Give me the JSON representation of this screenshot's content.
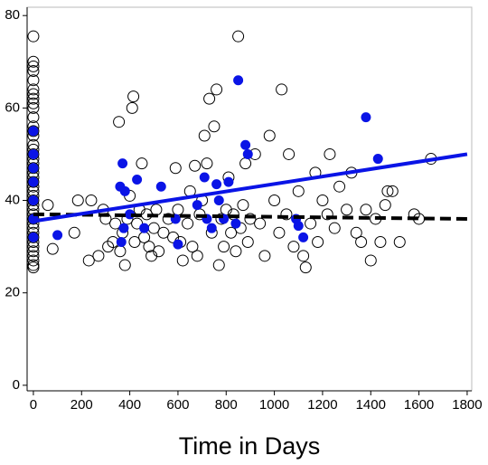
{
  "chart_data": {
    "type": "scatter",
    "xlabel": "Time in Days",
    "xlim": [
      -26,
      1819
    ],
    "ylim": [
      -1.2,
      81.8
    ],
    "xticks": [
      0,
      200,
      400,
      600,
      800,
      1000,
      1200,
      1400,
      1600,
      1800
    ],
    "yticks": [
      0,
      20,
      40,
      60,
      80
    ],
    "series": [
      {
        "color": "#000000",
        "marker": "open",
        "x": [
          0,
          0,
          0,
          0,
          0,
          0,
          0,
          0,
          0,
          0,
          0,
          0,
          0,
          0,
          0,
          0,
          0,
          0,
          0,
          0,
          0,
          0,
          0,
          0,
          0,
          0,
          0,
          0,
          0,
          0,
          0,
          0,
          0,
          0,
          0,
          0,
          0,
          0,
          0,
          0,
          0,
          0,
          60,
          80,
          170,
          185,
          230,
          240,
          270,
          290,
          300,
          310,
          330,
          340,
          355,
          360,
          370,
          380,
          390,
          400,
          410,
          415,
          420,
          430,
          440,
          450,
          460,
          470,
          480,
          490,
          500,
          510,
          520,
          540,
          560,
          580,
          590,
          600,
          610,
          620,
          640,
          650,
          660,
          670,
          680,
          690,
          700,
          710,
          720,
          730,
          740,
          750,
          760,
          770,
          780,
          790,
          800,
          810,
          820,
          830,
          840,
          850,
          860,
          870,
          880,
          890,
          900,
          920,
          940,
          960,
          980,
          1000,
          1020,
          1030,
          1050,
          1060,
          1080,
          1100,
          1120,
          1130,
          1150,
          1170,
          1180,
          1200,
          1220,
          1230,
          1250,
          1270,
          1300,
          1320,
          1340,
          1360,
          1380,
          1400,
          1420,
          1440,
          1460,
          1470,
          1490,
          1520,
          1580,
          1600,
          1650
        ],
        "values": [
          75.5,
          70,
          69,
          68,
          66,
          64,
          63,
          62,
          61,
          60,
          58,
          56,
          55,
          54,
          52,
          51,
          50,
          49,
          48,
          47,
          46,
          45,
          44,
          43,
          42,
          41,
          40,
          39,
          38,
          37,
          36,
          35,
          34,
          33,
          32,
          31,
          30,
          29,
          28,
          27,
          26,
          25.5,
          39,
          29.5,
          33,
          40,
          27,
          40,
          28,
          38,
          36,
          30,
          31,
          35,
          57,
          29,
          33,
          26,
          36,
          41,
          60,
          62.5,
          31,
          35,
          38,
          48,
          32,
          37,
          30,
          28,
          34,
          38,
          29,
          33,
          36,
          32,
          47,
          38,
          31,
          27,
          35,
          42,
          30,
          47.5,
          28,
          37,
          40,
          54,
          48,
          62,
          33,
          56,
          64,
          26,
          36,
          30,
          38,
          45,
          33,
          37,
          29,
          75.5,
          34,
          39,
          48,
          31,
          36,
          50,
          35,
          28,
          54,
          40,
          33,
          64,
          37,
          50,
          30,
          42,
          28,
          25.5,
          35,
          46,
          31,
          40,
          37,
          50,
          34,
          43,
          38,
          46,
          33,
          31,
          38,
          27,
          36,
          31,
          39,
          42,
          42,
          31,
          37,
          36,
          49
        ]
      },
      {
        "color": "#0a14e6",
        "marker": "filled",
        "x": [
          0,
          0,
          0,
          0,
          0,
          0,
          0,
          100,
          360,
          370,
          365,
          375,
          380,
          400,
          430,
          460,
          530,
          590,
          600,
          680,
          710,
          720,
          740,
          760,
          770,
          790,
          810,
          840,
          850,
          880,
          890,
          1090,
          1100,
          1120,
          1380,
          1430
        ],
        "values": [
          55,
          50,
          47,
          44,
          40,
          36,
          32,
          32.5,
          43,
          48,
          31,
          34,
          42,
          37,
          44.5,
          34,
          43,
          36,
          30.5,
          39,
          45,
          36,
          34,
          43.5,
          40,
          36,
          44,
          35,
          66,
          52,
          50,
          36,
          34.5,
          32,
          58,
          49
        ]
      }
    ],
    "lines": [
      {
        "color": "#000000",
        "dashed": true,
        "x": [
          0,
          1800
        ],
        "values": [
          37,
          36
        ]
      },
      {
        "color": "#0a14e6",
        "dashed": false,
        "x": [
          0,
          1800
        ],
        "values": [
          35.5,
          50
        ]
      }
    ]
  }
}
